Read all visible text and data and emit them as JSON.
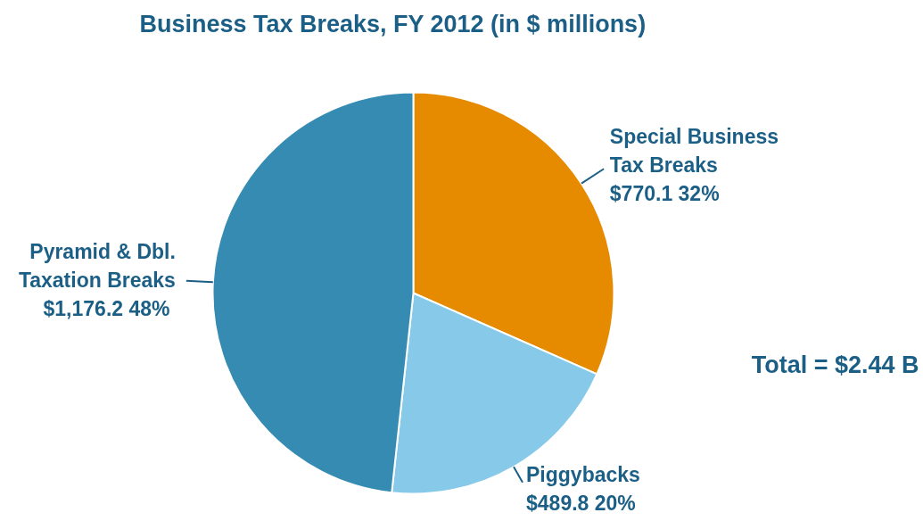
{
  "chart_data": {
    "type": "pie",
    "title": "Business Tax Breaks, FY 2012 (in $ millions)",
    "categories": [
      "Special Business Tax Breaks",
      "Piggybacks",
      "Pyramid & Dbl. Taxation Breaks"
    ],
    "values": [
      770.1,
      489.8,
      1176.2
    ],
    "colors": [
      "#e68a00",
      "#87c9e9",
      "#358bb1"
    ],
    "value_labels": [
      "$770.1  32%",
      "$489.8  20%",
      "$1,176.2  48%"
    ],
    "annotations": [
      "Total = $2.44 B"
    ]
  }
}
